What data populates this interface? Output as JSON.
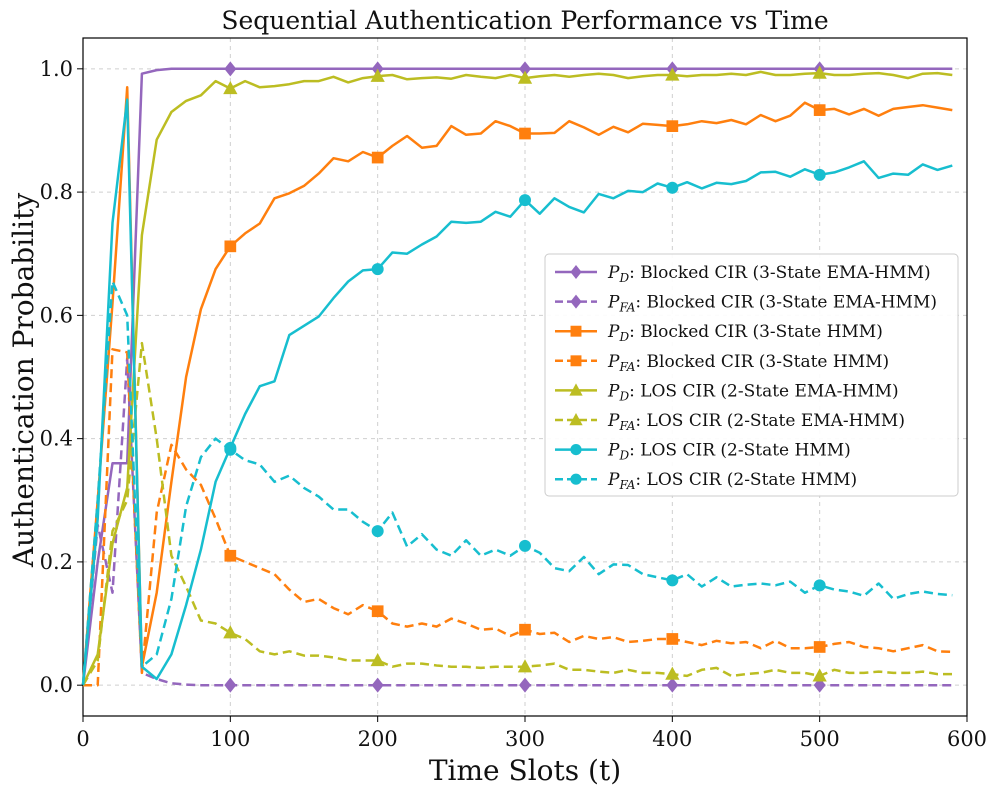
{
  "chart_data": {
    "type": "line",
    "title": "Sequential Authentication Performance vs Time",
    "xlabel": "Time Slots (t)",
    "ylabel": "Authentication Probability",
    "xlim": [
      0,
      600
    ],
    "ylim": [
      -0.05,
      1.05
    ],
    "xticks": [
      0,
      100,
      200,
      300,
      400,
      500,
      600
    ],
    "yticks": [
      0.0,
      0.2,
      0.4,
      0.6,
      0.8,
      1.0
    ],
    "xtick_labels": [
      "0",
      "100",
      "200",
      "300",
      "400",
      "500",
      "600"
    ],
    "ytick_labels": [
      "0.0",
      "0.2",
      "0.4",
      "0.6",
      "0.8",
      "1.0"
    ],
    "grid": true,
    "legend_position": "center-right",
    "series": [
      {
        "name": "PD: Blocked CIR (3-State EMA-HMM)",
        "legend_sym": "P",
        "legend_sub": "D",
        "legend_text": ": Blocked CIR (3-State EMA-HMM)",
        "color": "#9467bd",
        "dash": "solid",
        "marker": "diamond",
        "marker_x": [
          100,
          200,
          300,
          400,
          500
        ],
        "x": [
          0,
          10,
          20,
          30,
          40,
          50,
          60,
          70,
          80,
          90,
          100,
          200,
          300,
          400,
          500,
          590
        ],
        "y": [
          0.0,
          0.2,
          0.36,
          0.36,
          0.992,
          0.998,
          1.0,
          1.0,
          1.0,
          1.0,
          1.0,
          1.0,
          1.0,
          1.0,
          1.0,
          1.0
        ]
      },
      {
        "name": "PFA: Blocked CIR (3-State EMA-HMM)",
        "legend_sym": "P",
        "legend_sub": "FA",
        "legend_text": ": Blocked CIR (3-State EMA-HMM)",
        "color": "#9467bd",
        "dash": "dashed",
        "marker": "diamond",
        "marker_x": [
          100,
          200,
          300,
          400,
          500
        ],
        "x": [
          0,
          10,
          20,
          30,
          40,
          50,
          60,
          70,
          80,
          90,
          100,
          150,
          200,
          250,
          300,
          350,
          400,
          450,
          500,
          550,
          590
        ],
        "y": [
          0.0,
          0.26,
          0.15,
          0.53,
          0.02,
          0.01,
          0.003,
          0.001,
          0.0,
          0.0,
          0.0,
          0.0,
          0.0,
          0.0,
          0.0,
          0.0,
          0.0,
          0.0,
          0.0,
          0.0,
          0.0
        ]
      },
      {
        "name": "PD: Blocked CIR (3-State HMM)",
        "legend_sym": "P",
        "legend_sub": "D",
        "legend_text": ": Blocked CIR (3-State HMM)",
        "color": "#ff7f0e",
        "dash": "solid",
        "marker": "square",
        "marker_x": [
          100,
          200,
          300,
          400,
          500
        ],
        "x": [
          0,
          10,
          20,
          30,
          40,
          50,
          60,
          70,
          80,
          90,
          100,
          110,
          120,
          130,
          140,
          150,
          160,
          170,
          180,
          190,
          200,
          210,
          220,
          230,
          240,
          250,
          260,
          270,
          280,
          290,
          300,
          310,
          320,
          330,
          340,
          350,
          360,
          370,
          380,
          390,
          400,
          410,
          420,
          430,
          440,
          450,
          460,
          470,
          480,
          490,
          500,
          510,
          520,
          530,
          540,
          550,
          560,
          570,
          580,
          590
        ],
        "y": [
          0.0,
          0.3,
          0.62,
          0.97,
          0.03,
          0.15,
          0.33,
          0.5,
          0.61,
          0.675,
          0.712,
          0.733,
          0.749,
          0.79,
          0.798,
          0.81,
          0.83,
          0.855,
          0.85,
          0.865,
          0.856,
          0.875,
          0.891,
          0.872,
          0.875,
          0.907,
          0.893,
          0.895,
          0.915,
          0.907,
          0.895,
          0.895,
          0.896,
          0.915,
          0.905,
          0.893,
          0.906,
          0.897,
          0.911,
          0.909,
          0.907,
          0.91,
          0.915,
          0.912,
          0.917,
          0.91,
          0.925,
          0.915,
          0.924,
          0.945,
          0.933,
          0.935,
          0.926,
          0.935,
          0.924,
          0.935,
          0.938,
          0.941,
          0.937,
          0.933
        ]
      },
      {
        "name": "PFA: Blocked CIR (3-State HMM)",
        "legend_sym": "P",
        "legend_sub": "FA",
        "legend_text": ": Blocked CIR (3-State HMM)",
        "color": "#ff7f0e",
        "dash": "dashed",
        "marker": "square",
        "marker_x": [
          100,
          200,
          300,
          400,
          500
        ],
        "x": [
          0,
          10,
          20,
          30,
          40,
          50,
          60,
          70,
          80,
          90,
          100,
          110,
          120,
          130,
          140,
          150,
          160,
          170,
          180,
          190,
          200,
          210,
          220,
          230,
          240,
          250,
          260,
          270,
          280,
          290,
          300,
          310,
          320,
          330,
          340,
          350,
          360,
          370,
          380,
          390,
          400,
          410,
          420,
          430,
          440,
          450,
          460,
          470,
          480,
          490,
          500,
          510,
          520,
          530,
          540,
          550,
          560,
          570,
          580,
          590
        ],
        "y": [
          0.0,
          0.0,
          0.545,
          0.54,
          0.02,
          0.28,
          0.39,
          0.35,
          0.325,
          0.27,
          0.21,
          0.2,
          0.19,
          0.18,
          0.155,
          0.135,
          0.14,
          0.125,
          0.115,
          0.13,
          0.12,
          0.1,
          0.095,
          0.1,
          0.095,
          0.108,
          0.1,
          0.09,
          0.092,
          0.08,
          0.09,
          0.083,
          0.085,
          0.07,
          0.08,
          0.075,
          0.078,
          0.07,
          0.072,
          0.075,
          0.075,
          0.07,
          0.065,
          0.072,
          0.068,
          0.07,
          0.06,
          0.072,
          0.06,
          0.06,
          0.062,
          0.067,
          0.07,
          0.062,
          0.06,
          0.055,
          0.06,
          0.065,
          0.055,
          0.054
        ]
      },
      {
        "name": "PD: LOS CIR (2-State EMA-HMM)",
        "legend_sym": "P",
        "legend_sub": "D",
        "legend_text": ": LOS CIR (2-State EMA-HMM)",
        "color": "#bcbd22",
        "dash": "solid",
        "marker": "triangle",
        "marker_x": [
          100,
          200,
          300,
          400,
          500
        ],
        "x": [
          0,
          10,
          20,
          30,
          40,
          50,
          60,
          70,
          80,
          90,
          100,
          110,
          120,
          130,
          140,
          150,
          160,
          170,
          180,
          190,
          200,
          210,
          220,
          230,
          240,
          250,
          260,
          270,
          280,
          290,
          300,
          310,
          320,
          330,
          340,
          350,
          360,
          370,
          380,
          390,
          400,
          410,
          420,
          430,
          440,
          450,
          460,
          470,
          480,
          490,
          500,
          510,
          520,
          530,
          540,
          550,
          560,
          570,
          580,
          590
        ],
        "y": [
          0.0,
          0.05,
          0.23,
          0.32,
          0.73,
          0.885,
          0.93,
          0.948,
          0.957,
          0.98,
          0.968,
          0.98,
          0.97,
          0.972,
          0.975,
          0.98,
          0.98,
          0.987,
          0.978,
          0.985,
          0.988,
          0.99,
          0.983,
          0.985,
          0.986,
          0.984,
          0.99,
          0.987,
          0.985,
          0.99,
          0.985,
          0.988,
          0.99,
          0.987,
          0.99,
          0.992,
          0.99,
          0.985,
          0.988,
          0.99,
          0.99,
          0.988,
          0.99,
          0.99,
          0.992,
          0.99,
          0.995,
          0.99,
          0.99,
          0.992,
          0.993,
          0.99,
          0.99,
          0.992,
          0.993,
          0.99,
          0.985,
          0.992,
          0.993,
          0.99
        ]
      },
      {
        "name": "PFA: LOS CIR (2-State EMA-HMM)",
        "legend_sym": "P",
        "legend_sub": "FA",
        "legend_text": ": LOS CIR (2-State EMA-HMM)",
        "color": "#bcbd22",
        "dash": "dashed",
        "marker": "triangle",
        "marker_x": [
          100,
          200,
          300,
          400,
          500
        ],
        "x": [
          0,
          10,
          20,
          30,
          40,
          50,
          60,
          70,
          80,
          90,
          100,
          110,
          120,
          130,
          140,
          150,
          160,
          170,
          180,
          190,
          200,
          210,
          220,
          230,
          240,
          250,
          260,
          270,
          280,
          290,
          300,
          310,
          320,
          330,
          340,
          350,
          360,
          370,
          380,
          390,
          400,
          410,
          420,
          430,
          440,
          450,
          460,
          470,
          480,
          490,
          500,
          510,
          520,
          530,
          540,
          550,
          560,
          570,
          580,
          590
        ],
        "y": [
          0.0,
          0.04,
          0.25,
          0.3,
          0.555,
          0.4,
          0.21,
          0.16,
          0.105,
          0.1,
          0.085,
          0.075,
          0.055,
          0.05,
          0.055,
          0.048,
          0.048,
          0.045,
          0.04,
          0.04,
          0.04,
          0.03,
          0.035,
          0.035,
          0.032,
          0.03,
          0.03,
          0.028,
          0.03,
          0.03,
          0.03,
          0.032,
          0.035,
          0.025,
          0.025,
          0.022,
          0.02,
          0.025,
          0.02,
          0.02,
          0.018,
          0.015,
          0.025,
          0.028,
          0.015,
          0.018,
          0.02,
          0.025,
          0.02,
          0.02,
          0.015,
          0.025,
          0.02,
          0.02,
          0.022,
          0.02,
          0.02,
          0.022,
          0.018,
          0.018
        ]
      },
      {
        "name": "PD: LOS CIR (2-State HMM)",
        "legend_sym": "P",
        "legend_sub": "D",
        "legend_text": ": LOS CIR (2-State HMM)",
        "color": "#17becf",
        "dash": "solid",
        "marker": "circle",
        "marker_x": [
          100,
          200,
          300,
          400,
          500
        ],
        "x": [
          0,
          10,
          20,
          30,
          40,
          50,
          60,
          70,
          80,
          90,
          100,
          110,
          120,
          130,
          140,
          150,
          160,
          170,
          180,
          190,
          200,
          210,
          220,
          230,
          240,
          250,
          260,
          270,
          280,
          290,
          300,
          310,
          320,
          330,
          340,
          350,
          360,
          370,
          380,
          390,
          400,
          410,
          420,
          430,
          440,
          450,
          460,
          470,
          480,
          490,
          500,
          510,
          520,
          530,
          540,
          550,
          560,
          570,
          580,
          590
        ],
        "y": [
          0.0,
          0.27,
          0.75,
          0.95,
          0.03,
          0.01,
          0.05,
          0.13,
          0.22,
          0.33,
          0.385,
          0.44,
          0.485,
          0.493,
          0.568,
          0.583,
          0.598,
          0.628,
          0.655,
          0.673,
          0.675,
          0.702,
          0.7,
          0.715,
          0.728,
          0.752,
          0.75,
          0.752,
          0.768,
          0.76,
          0.787,
          0.765,
          0.79,
          0.776,
          0.767,
          0.797,
          0.79,
          0.802,
          0.8,
          0.814,
          0.807,
          0.816,
          0.806,
          0.815,
          0.813,
          0.818,
          0.832,
          0.833,
          0.825,
          0.837,
          0.828,
          0.832,
          0.84,
          0.85,
          0.823,
          0.83,
          0.828,
          0.845,
          0.836,
          0.843
        ]
      },
      {
        "name": "PFA: LOS CIR (2-State HMM)",
        "legend_sym": "P",
        "legend_sub": "FA",
        "legend_text": ": LOS CIR (2-State HMM)",
        "color": "#17becf",
        "dash": "dashed",
        "marker": "circle",
        "marker_x": [
          100,
          200,
          300,
          400,
          500
        ],
        "x": [
          0,
          10,
          20,
          30,
          40,
          50,
          60,
          70,
          80,
          90,
          100,
          110,
          120,
          130,
          140,
          150,
          160,
          170,
          180,
          190,
          200,
          210,
          220,
          230,
          240,
          250,
          260,
          270,
          280,
          290,
          300,
          310,
          320,
          330,
          340,
          350,
          360,
          370,
          380,
          390,
          400,
          410,
          420,
          430,
          440,
          450,
          460,
          470,
          480,
          490,
          500,
          510,
          520,
          530,
          540,
          550,
          560,
          570,
          580,
          590
        ],
        "y": [
          0.0,
          0.3,
          0.655,
          0.6,
          0.03,
          0.05,
          0.14,
          0.29,
          0.37,
          0.4,
          0.382,
          0.365,
          0.358,
          0.33,
          0.34,
          0.32,
          0.306,
          0.285,
          0.285,
          0.265,
          0.25,
          0.28,
          0.225,
          0.245,
          0.22,
          0.21,
          0.235,
          0.21,
          0.22,
          0.21,
          0.226,
          0.215,
          0.19,
          0.185,
          0.208,
          0.18,
          0.196,
          0.195,
          0.18,
          0.175,
          0.17,
          0.18,
          0.16,
          0.175,
          0.16,
          0.163,
          0.165,
          0.162,
          0.168,
          0.15,
          0.162,
          0.155,
          0.152,
          0.145,
          0.165,
          0.14,
          0.148,
          0.152,
          0.148,
          0.146
        ]
      }
    ]
  }
}
